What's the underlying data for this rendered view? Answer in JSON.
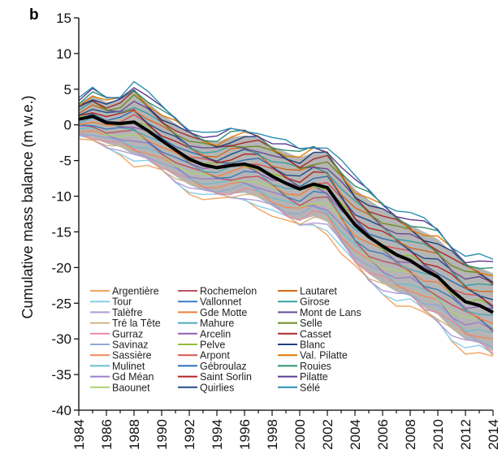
{
  "chart_data": {
    "type": "line",
    "panel_label": "b",
    "title": "",
    "xlabel": "",
    "ylabel": "Cumulative mass balance (m w.e.)",
    "xlim": [
      1984,
      2014
    ],
    "ylim": [
      -40,
      15
    ],
    "x_ticks": [
      "1984",
      "1986",
      "1988",
      "1990",
      "1992",
      "1994",
      "1996",
      "1998",
      "2000",
      "2002",
      "2004",
      "2006",
      "2008",
      "2010",
      "2012",
      "2014"
    ],
    "y_ticks": [
      "15",
      "10",
      "5",
      "0",
      "-5",
      "-10",
      "-15",
      "-20",
      "-25",
      "-30",
      "-35",
      "-40"
    ],
    "grid": false,
    "legend_position": "bottom-left",
    "x": [
      1984,
      1985,
      1986,
      1987,
      1988,
      1989,
      1990,
      1991,
      1992,
      1993,
      1994,
      1995,
      1996,
      1997,
      1998,
      1999,
      2000,
      2001,
      2002,
      2003,
      2004,
      2005,
      2006,
      2007,
      2008,
      2009,
      2010,
      2011,
      2012,
      2013,
      2014
    ],
    "mean": {
      "color": "#000000",
      "values": [
        0.8,
        1.2,
        0.3,
        0.2,
        0.4,
        -0.8,
        -2.2,
        -3.5,
        -4.8,
        -5.6,
        -6.0,
        -5.7,
        -5.5,
        -6.0,
        -7.2,
        -8.2,
        -9.0,
        -8.3,
        -8.8,
        -11.5,
        -14.0,
        -15.7,
        -17.0,
        -18.2,
        -19.0,
        -20.3,
        -21.3,
        -23.2,
        -24.8,
        -25.3,
        -26.3
      ]
    },
    "envelope": {
      "color": "#a8a8a8",
      "upper": [
        3.0,
        4.2,
        3.2,
        3.5,
        5.0,
        3.2,
        1.5,
        0.2,
        -1.2,
        -2.0,
        -2.4,
        -1.7,
        -1.5,
        -1.8,
        -3.0,
        -3.8,
        -4.6,
        -3.8,
        -4.0,
        -6.5,
        -9.0,
        -10.5,
        -11.8,
        -13.0,
        -14.0,
        -15.0,
        -16.0,
        -17.8,
        -19.5,
        -20.0,
        -20.8
      ],
      "lower": [
        -1.4,
        -1.8,
        -2.6,
        -3.1,
        -4.2,
        -4.8,
        -5.9,
        -7.2,
        -8.4,
        -9.2,
        -9.6,
        -9.7,
        -9.5,
        -10.2,
        -11.4,
        -12.6,
        -13.4,
        -12.8,
        -13.6,
        -16.5,
        -19.0,
        -20.9,
        -22.2,
        -23.4,
        -24.0,
        -25.6,
        -26.6,
        -28.6,
        -30.1,
        -30.6,
        -31.8
      ]
    },
    "series": [
      {
        "name": "Argentière",
        "color": "#f4a460"
      },
      {
        "name": "Tour",
        "color": "#87ceeb"
      },
      {
        "name": "Talèfre",
        "color": "#b19cd9"
      },
      {
        "name": "Tré la Tête",
        "color": "#d4b483"
      },
      {
        "name": "Gurraz",
        "color": "#e88aa3"
      },
      {
        "name": "Savinaz",
        "color": "#8fa8d8"
      },
      {
        "name": "Sassière",
        "color": "#f08a5d"
      },
      {
        "name": "Mulinet",
        "color": "#6bbcd1"
      },
      {
        "name": "Gd Méan",
        "color": "#9b7ec9"
      },
      {
        "name": "Baounet",
        "color": "#a9d46f"
      },
      {
        "name": "Rochemelon",
        "color": "#c05060"
      },
      {
        "name": "Vallonnet",
        "color": "#3a7bbf"
      },
      {
        "name": "Gde Motte",
        "color": "#f07e3e"
      },
      {
        "name": "Mahure",
        "color": "#4fa8b8"
      },
      {
        "name": "Arcelin",
        "color": "#8e5fb5"
      },
      {
        "name": "Pelve",
        "color": "#8fbf3a"
      },
      {
        "name": "Arpont",
        "color": "#d9534f"
      },
      {
        "name": "Gébroulaz",
        "color": "#2e6fb0"
      },
      {
        "name": "Saint Sorlin",
        "color": "#b22222"
      },
      {
        "name": "Quirlies",
        "color": "#1f4e8c"
      },
      {
        "name": "Lautaret",
        "color": "#d2691e"
      },
      {
        "name": "Girose",
        "color": "#3aa0a0"
      },
      {
        "name": "Mont de Lans",
        "color": "#6a4c93"
      },
      {
        "name": "Selle",
        "color": "#6b8e23"
      },
      {
        "name": "Casset",
        "color": "#a52a2a"
      },
      {
        "name": "Blanc",
        "color": "#1e3f80"
      },
      {
        "name": "Val. Pilatte",
        "color": "#e07b00"
      },
      {
        "name": "Rouies",
        "color": "#2f8f6f"
      },
      {
        "name": "Pilatte",
        "color": "#5b3a8e"
      },
      {
        "name": "Sélé",
        "color": "#2a8fb0"
      }
    ]
  }
}
